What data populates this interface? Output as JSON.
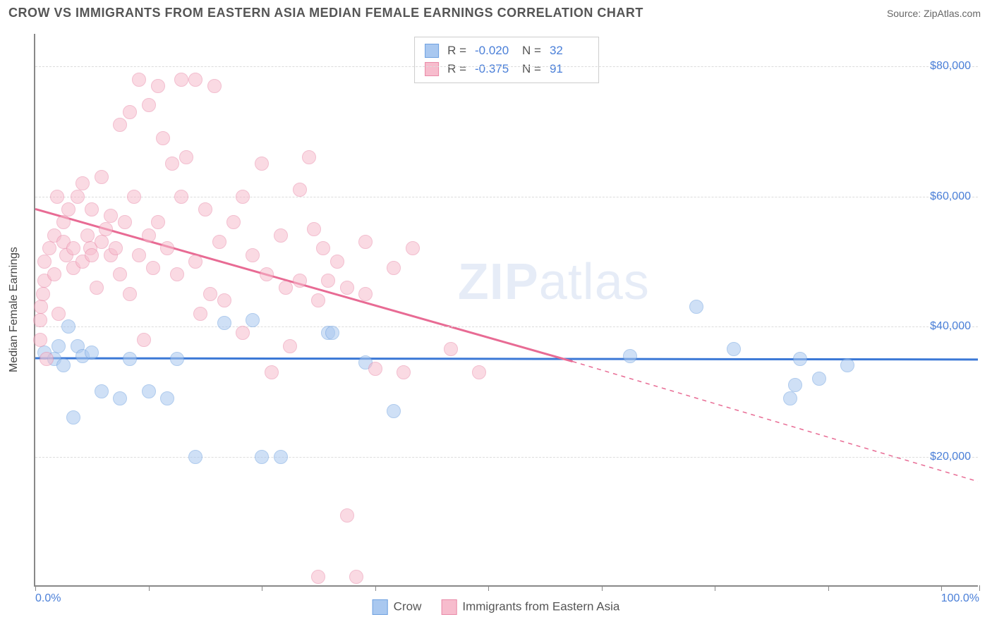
{
  "title": "CROW VS IMMIGRANTS FROM EASTERN ASIA MEDIAN FEMALE EARNINGS CORRELATION CHART",
  "source_label": "Source: ",
  "source_value": "ZipAtlas.com",
  "ylabel": "Median Female Earnings",
  "watermark_bold": "ZIP",
  "watermark_thin": "atlas",
  "chart": {
    "type": "scatter",
    "background_color": "#ffffff",
    "grid_color": "#dcdcdc",
    "axis_color": "#888888",
    "text_color": "#555555",
    "value_color": "#4a7fd8",
    "xlim": [
      0,
      100
    ],
    "ylim": [
      0,
      85000
    ],
    "xticks": [
      0,
      12,
      24,
      36,
      48,
      60,
      72,
      84,
      96,
      100
    ],
    "xtick_labels": {
      "0": "0.0%",
      "100": "100.0%"
    },
    "yticks": [
      20000,
      40000,
      60000,
      80000
    ],
    "ytick_labels": {
      "20000": "$20,000",
      "40000": "$40,000",
      "60000": "$60,000",
      "80000": "$80,000"
    },
    "marker_radius": 10,
    "marker_opacity": 0.55,
    "trend_line_width": 3
  },
  "series": [
    {
      "name": "Crow",
      "color_fill": "#a9c8f0",
      "color_stroke": "#6fa1e0",
      "R_label": "R = ",
      "R": "-0.020",
      "N_label": "N = ",
      "N": "32",
      "trend": {
        "x1": 0,
        "y1": 35000,
        "x2": 100,
        "y2": 34800,
        "dash": false
      },
      "points": [
        [
          1,
          36000
        ],
        [
          2,
          35000
        ],
        [
          2.5,
          37000
        ],
        [
          3,
          34000
        ],
        [
          3.5,
          40000
        ],
        [
          4,
          26000
        ],
        [
          4.5,
          37000
        ],
        [
          5,
          35500
        ],
        [
          6,
          36000
        ],
        [
          7,
          30000
        ],
        [
          9,
          29000
        ],
        [
          10,
          35000
        ],
        [
          12,
          30000
        ],
        [
          14,
          29000
        ],
        [
          15,
          35000
        ],
        [
          17,
          20000
        ],
        [
          20,
          40500
        ],
        [
          23,
          41000
        ],
        [
          24,
          20000
        ],
        [
          26,
          20000
        ],
        [
          31,
          39000
        ],
        [
          31.5,
          39000
        ],
        [
          35,
          34500
        ],
        [
          38,
          27000
        ],
        [
          63,
          35500
        ],
        [
          70,
          43000
        ],
        [
          74,
          36500
        ],
        [
          80,
          29000
        ],
        [
          80.5,
          31000
        ],
        [
          81,
          35000
        ],
        [
          83,
          32000
        ],
        [
          86,
          34000
        ]
      ]
    },
    {
      "name": "Immigrants from Eastern Asia",
      "color_fill": "#f7bccd",
      "color_stroke": "#e98aa8",
      "R_label": "R = ",
      "R": "-0.375",
      "N_label": "N = ",
      "N": "91",
      "trend": {
        "x1": 0,
        "y1": 58000,
        "x2": 57,
        "y2": 34500,
        "dash": false
      },
      "trend_ext": {
        "x1": 57,
        "y1": 34500,
        "x2": 100,
        "y2": 16000,
        "dash": true
      },
      "points": [
        [
          0.5,
          38000
        ],
        [
          0.5,
          41000
        ],
        [
          0.6,
          43000
        ],
        [
          0.8,
          45000
        ],
        [
          1,
          47000
        ],
        [
          1,
          50000
        ],
        [
          1.2,
          35000
        ],
        [
          1.5,
          52000
        ],
        [
          2,
          48000
        ],
        [
          2,
          54000
        ],
        [
          2.3,
          60000
        ],
        [
          2.5,
          42000
        ],
        [
          3,
          53000
        ],
        [
          3,
          56000
        ],
        [
          3.3,
          51000
        ],
        [
          3.5,
          58000
        ],
        [
          4,
          49000
        ],
        [
          4,
          52000
        ],
        [
          4.5,
          60000
        ],
        [
          5,
          50000
        ],
        [
          5,
          62000
        ],
        [
          5.5,
          54000
        ],
        [
          5.8,
          52000
        ],
        [
          6,
          51000
        ],
        [
          6,
          58000
        ],
        [
          6.5,
          46000
        ],
        [
          7,
          53000
        ],
        [
          7,
          63000
        ],
        [
          7.5,
          55000
        ],
        [
          8,
          51000
        ],
        [
          8,
          57000
        ],
        [
          8.5,
          52000
        ],
        [
          9,
          48000
        ],
        [
          9,
          71000
        ],
        [
          9.5,
          56000
        ],
        [
          10,
          45000
        ],
        [
          10,
          73000
        ],
        [
          10.5,
          60000
        ],
        [
          11,
          51000
        ],
        [
          11,
          78000
        ],
        [
          11.5,
          38000
        ],
        [
          12,
          54000
        ],
        [
          12,
          74000
        ],
        [
          12.5,
          49000
        ],
        [
          13,
          56000
        ],
        [
          13,
          77000
        ],
        [
          13.5,
          69000
        ],
        [
          14,
          52000
        ],
        [
          14.5,
          65000
        ],
        [
          15,
          48000
        ],
        [
          15.5,
          78000
        ],
        [
          15.5,
          60000
        ],
        [
          16,
          66000
        ],
        [
          17,
          50000
        ],
        [
          17,
          78000
        ],
        [
          17.5,
          42000
        ],
        [
          18,
          58000
        ],
        [
          18.5,
          45000
        ],
        [
          19,
          77000
        ],
        [
          19.5,
          53000
        ],
        [
          20,
          44000
        ],
        [
          21,
          56000
        ],
        [
          22,
          60000
        ],
        [
          22,
          39000
        ],
        [
          23,
          51000
        ],
        [
          24,
          65000
        ],
        [
          24.5,
          48000
        ],
        [
          25,
          33000
        ],
        [
          26,
          54000
        ],
        [
          26.5,
          46000
        ],
        [
          27,
          37000
        ],
        [
          28,
          47000
        ],
        [
          28,
          61000
        ],
        [
          29,
          66000
        ],
        [
          29.5,
          55000
        ],
        [
          30,
          1500
        ],
        [
          30,
          44000
        ],
        [
          30.5,
          52000
        ],
        [
          31,
          47000
        ],
        [
          32,
          50000
        ],
        [
          33,
          11000
        ],
        [
          33,
          46000
        ],
        [
          34,
          1500
        ],
        [
          35,
          53000
        ],
        [
          35,
          45000
        ],
        [
          36,
          33500
        ],
        [
          38,
          49000
        ],
        [
          39,
          33000
        ],
        [
          40,
          52000
        ],
        [
          44,
          36500
        ],
        [
          47,
          33000
        ]
      ]
    }
  ],
  "bottom_legend": [
    {
      "label": "Crow",
      "fill": "#a9c8f0",
      "stroke": "#6fa1e0"
    },
    {
      "label": "Immigrants from Eastern Asia",
      "fill": "#f7bccd",
      "stroke": "#e98aa8"
    }
  ]
}
